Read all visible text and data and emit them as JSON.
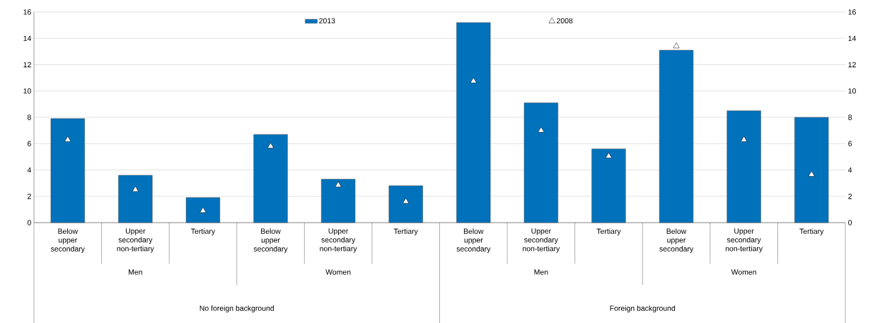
{
  "chart_data": {
    "type": "bar",
    "categories": [
      "Below upper secondary",
      "Upper secondary non-tertiary",
      "Tertiary",
      "Below upper secondary",
      "Upper secondary non-tertiary",
      "Tertiary",
      "Below upper secondary",
      "Upper secondary non-tertiary",
      "Tertiary",
      "Below upper secondary",
      "Upper secondary non-tertiary",
      "Tertiary"
    ],
    "series": [
      {
        "name": "2013",
        "color": "#0072bc",
        "values": [
          7.9,
          3.6,
          1.9,
          6.7,
          3.3,
          2.8,
          15.2,
          9.1,
          5.6,
          13.1,
          8.5,
          8.0
        ]
      },
      {
        "name": "2008",
        "type": "scatter",
        "marker": "triangle",
        "color": "#ffffff",
        "values": [
          6.3,
          2.5,
          0.9,
          5.8,
          2.85,
          1.6,
          10.75,
          7.0,
          5.05,
          13.4,
          6.3,
          3.65
        ]
      }
    ],
    "ylim": [
      0,
      16
    ],
    "yticks": [
      0,
      2,
      4,
      6,
      8,
      10,
      12,
      14,
      16
    ],
    "y2lim": [
      0,
      16
    ],
    "y2ticks": [
      0,
      2,
      4,
      6,
      8,
      10,
      12,
      14,
      16
    ],
    "grid": "y",
    "legend": "top",
    "annotations": [
      "Men",
      "Women",
      "Men",
      "Women",
      "No foreign background",
      "Foreign background"
    ]
  }
}
